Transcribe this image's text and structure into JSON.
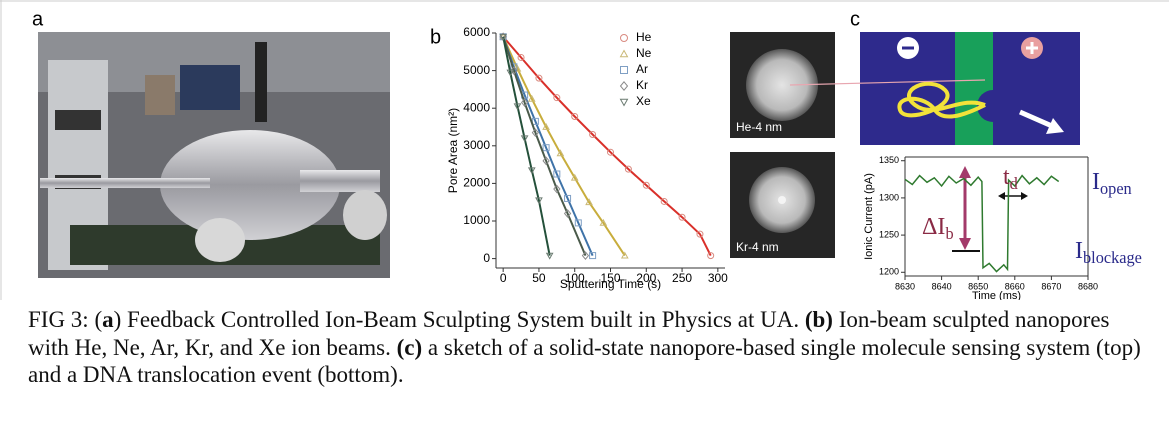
{
  "panels": {
    "a": {
      "label": "a"
    },
    "b": {
      "label": "b",
      "chart": {
        "type": "line",
        "x_label": "Sputtering Time (s)",
        "y_label": "Pore Area (nm²)",
        "xlim": [
          -10,
          310
        ],
        "xticks": [
          0,
          50,
          100,
          150,
          200,
          250,
          300
        ],
        "ylim": [
          -250,
          6000
        ],
        "yticks": [
          0,
          1000,
          2000,
          3000,
          4000,
          5000,
          6000
        ],
        "series": [
          {
            "name": "He",
            "color": "#d9302a",
            "marker": "circle",
            "marker_color": "#d98a80",
            "x": [
              0,
              25,
              50,
              75,
              100,
              125,
              150,
              175,
              200,
              225,
              250,
              275,
              290
            ],
            "values": [
              5900,
              5350,
              4800,
              4280,
              3780,
              3300,
              2830,
              2380,
              1950,
              1520,
              1100,
              650,
              80
            ]
          },
          {
            "name": "Ne",
            "color": "#c8ad3c",
            "marker": "triangle",
            "marker_color": "#c9b876",
            "x": [
              0,
              20,
              40,
              60,
              80,
              100,
              120,
              140,
              170
            ],
            "values": [
              5900,
              5050,
              4250,
              3500,
              2800,
              2150,
              1500,
              950,
              80
            ]
          },
          {
            "name": "Ar",
            "color": "#3f73a8",
            "marker": "square",
            "marker_color": "#7f9fc4",
            "x": [
              0,
              15,
              30,
              45,
              60,
              75,
              90,
              105,
              125
            ],
            "values": [
              5900,
              5100,
              4350,
              3650,
              2950,
              2250,
              1600,
              950,
              80
            ]
          },
          {
            "name": "Kr",
            "color": "#4a5a4a",
            "marker": "diamond",
            "marker_color": "#8a8a8a",
            "x": [
              0,
              15,
              30,
              45,
              60,
              75,
              90,
              115
            ],
            "values": [
              5900,
              5000,
              4150,
              3350,
              2600,
              1850,
              1200,
              80
            ]
          },
          {
            "name": "Xe",
            "color": "#24503a",
            "marker": "triangle-down",
            "marker_color": "#6a7a70",
            "x": [
              0,
              10,
              20,
              30,
              40,
              50,
              65
            ],
            "values": [
              5900,
              4950,
              4050,
              3200,
              2350,
              1550,
              80
            ]
          }
        ]
      },
      "images": [
        {
          "label": "He-4 nm"
        },
        {
          "label": "Kr-4 nm"
        }
      ]
    },
    "c": {
      "label": "c",
      "chart": {
        "type": "line",
        "x_label": "Time (ms)",
        "y_label": "Ionic Current (pA)",
        "xlim": [
          8630,
          8680
        ],
        "xticks": [
          8630,
          8640,
          8650,
          8660,
          8670,
          8680
        ],
        "ylim": [
          1195,
          1355
        ],
        "yticks": [
          1200,
          1250,
          1300,
          1350
        ],
        "series": [
          {
            "color": "#2f7a2f",
            "x": [
              8630,
              8632,
              8634,
              8636,
              8638,
              8640,
              8642,
              8644,
              8646,
              8648,
              8650,
              8651,
              8651.3,
              8653,
              8655,
              8657,
              8658,
              8658.3,
              8660,
              8662,
              8664,
              8666,
              8668,
              8670,
              8672
            ],
            "values": [
              1325,
              1318,
              1330,
              1321,
              1327,
              1316,
              1329,
              1320,
              1326,
              1317,
              1328,
              1322,
              1206,
              1212,
              1201,
              1210,
              1204,
              1324,
              1316,
              1330,
              1319,
              1327,
              1318,
              1329,
              1322
            ]
          }
        ],
        "annotations": [
          {
            "text": "ΔI",
            "sub": "b"
          },
          {
            "text": "t",
            "sub": "d"
          },
          {
            "text": "I",
            "sub": "open"
          },
          {
            "text": "I",
            "sub": "blockage"
          }
        ]
      }
    }
  },
  "caption": [
    {
      "text": "FIG 3: (",
      "bold": false
    },
    {
      "text": "a",
      "bold": true
    },
    {
      "text": ") Feedback Controlled Ion-Beam Sculpting System built in Physics at UA. ",
      "bold": false
    },
    {
      "text": "(b)",
      "bold": true
    },
    {
      "text": " Ion-beam sculpted nanopores with He, Ne, Ar, Kr, and Xe ion beams. ",
      "bold": false
    },
    {
      "text": "(c)",
      "bold": true
    },
    {
      "text": " a sketch of a solid-state nanopore-based single molecule sensing system (top) and a DNA translocation event (bottom).",
      "bold": false
    }
  ]
}
